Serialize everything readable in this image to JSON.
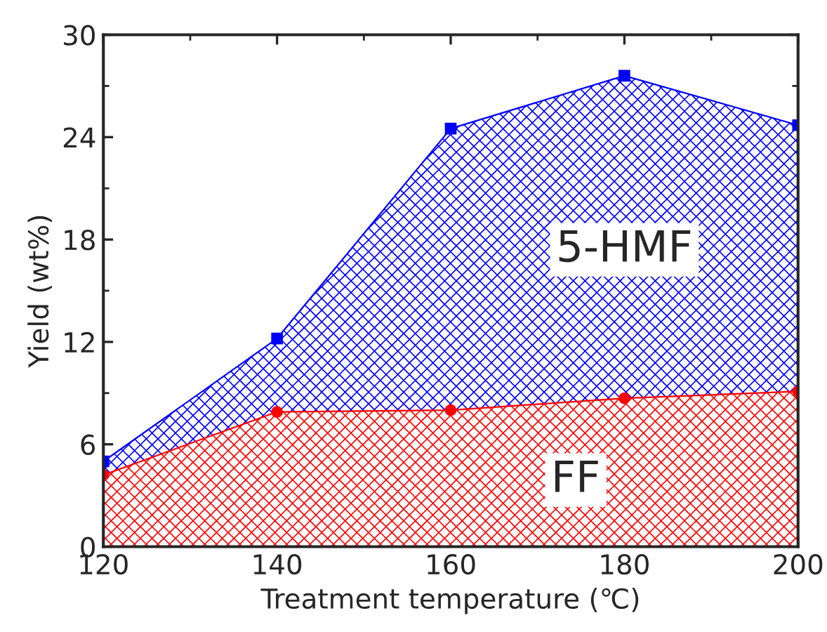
{
  "chart_data": {
    "type": "area",
    "xlabel": "Treatment temperature (℃)",
    "ylabel": "Yield (wt%)",
    "x": [
      120,
      140,
      160,
      180,
      200
    ],
    "series": [
      {
        "name": "5-HMF",
        "color": "#0000ff",
        "values": [
          5.0,
          12.2,
          24.5,
          27.6,
          24.7
        ],
        "marker": "square"
      },
      {
        "name": "FF",
        "color": "#ff0000",
        "values": [
          4.2,
          7.9,
          8.0,
          8.7,
          9.1
        ],
        "marker": "circle"
      }
    ],
    "xlim": [
      120,
      200
    ],
    "xticks": [
      120,
      140,
      160,
      180,
      200
    ],
    "ylim": [
      0,
      30
    ],
    "yticks": [
      0,
      6,
      12,
      18,
      24,
      30
    ],
    "grid": false,
    "legend": false
  }
}
